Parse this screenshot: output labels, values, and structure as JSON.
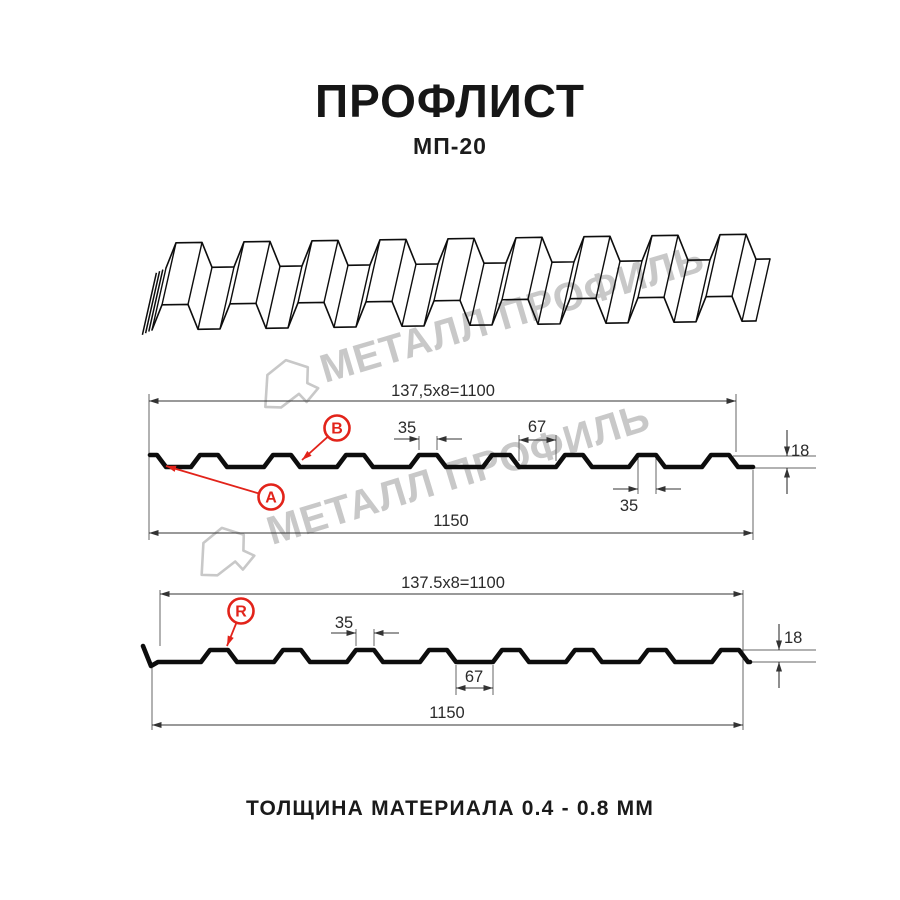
{
  "header": {
    "title": "ПРОФЛИСТ",
    "subtitle": "МП-20"
  },
  "footer": {
    "note": "ТОЛЩИНА МАТЕРИАЛА 0.4 - 0.8 ММ"
  },
  "watermark": {
    "text": "МЕТАЛЛ ПРОФИЛЬ"
  },
  "icons": {
    "watermark_logo": "metall-profil-polygon-mark"
  },
  "colors": {
    "accent_red": "#e2231a",
    "line": "#0d0d0d",
    "dim": "#333333",
    "ext": "#666666",
    "watermark": "#c8c8c8"
  },
  "profile_front": {
    "pitch_label": "137,5x8=1100",
    "rib_top_width": "35",
    "valley_width": "67",
    "height": "18",
    "rib_top_width_lower": "35",
    "overall_width": "1150",
    "zone_a": "A",
    "zone_b": "B"
  },
  "profile_reverse": {
    "pitch_label": "137.5x8=1100",
    "rib_top_width": "35",
    "valley_width": "67",
    "height": "18",
    "overall_width": "1150",
    "side_label": "R"
  }
}
